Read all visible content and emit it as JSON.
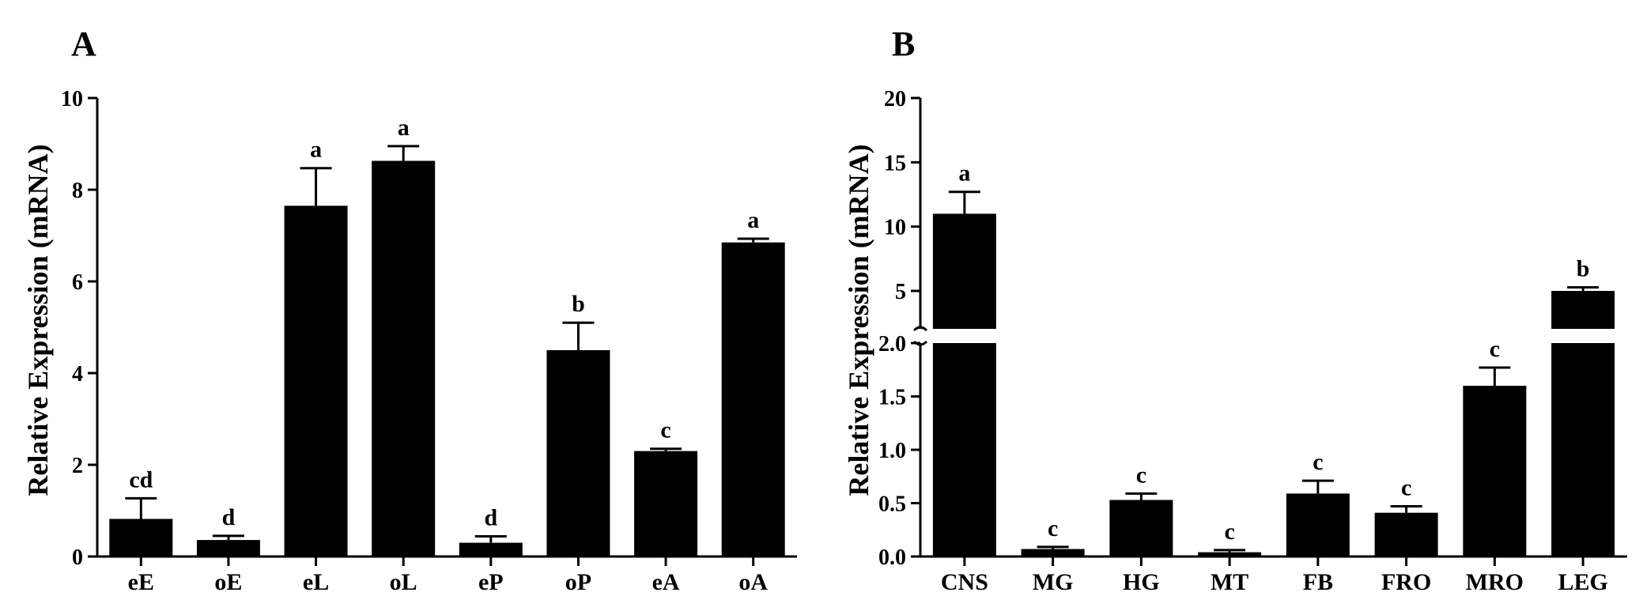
{
  "chart_data": [
    {
      "type": "bar",
      "panel": "A",
      "ylabel": "Relative Expression (mRNA)",
      "ylim": [
        0,
        10
      ],
      "yticks": [
        "0",
        "2",
        "4",
        "6",
        "8",
        "10"
      ],
      "categories": [
        "eE",
        "oE",
        "eL",
        "oL",
        "eP",
        "oP",
        "eA",
        "oA"
      ],
      "values": [
        0.82,
        0.36,
        7.65,
        8.63,
        0.3,
        4.5,
        2.3,
        6.85
      ],
      "errors": [
        0.45,
        0.09,
        0.82,
        0.32,
        0.14,
        0.6,
        0.05,
        0.08
      ],
      "significance": [
        "cd",
        "d",
        "a",
        "a",
        "d",
        "b",
        "c",
        "a"
      ],
      "bar_color": "#000000",
      "grid": false
    },
    {
      "type": "bar",
      "panel": "B",
      "ylabel": "Relative Expression (mRNA)",
      "broken_axis": true,
      "ylim_lower": [
        0,
        2.0
      ],
      "ylim_upper": [
        2.0,
        20
      ],
      "yticks_lower": [
        "0.0",
        "0.5",
        "1.0",
        "1.5",
        "2.0"
      ],
      "yticks_upper": [
        "5",
        "10",
        "15",
        "20"
      ],
      "categories": [
        "CNS",
        "MG",
        "HG",
        "MT",
        "FB",
        "FRO",
        "MRO",
        "LEG"
      ],
      "values": [
        11.0,
        0.07,
        0.53,
        0.04,
        0.59,
        0.41,
        1.6,
        5.0
      ],
      "errors": [
        1.7,
        0.02,
        0.06,
        0.02,
        0.12,
        0.06,
        0.17,
        0.28
      ],
      "significance": [
        "a",
        "c",
        "c",
        "c",
        "c",
        "c",
        "c",
        "b"
      ],
      "bar_color": "#000000",
      "grid": false
    }
  ]
}
